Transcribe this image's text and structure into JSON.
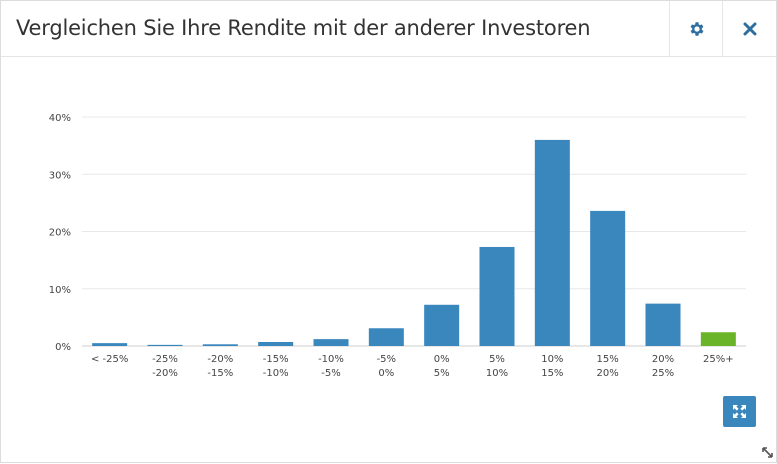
{
  "widget": {
    "title": "Vergleichen Sie Ihre Rendite mit der anderer Investoren",
    "icons": {
      "settings": "gear-icon",
      "close": "close-icon",
      "expand": "expand-icon",
      "resize": "resize-handle-icon"
    }
  },
  "colors": {
    "bar": "#3a87bd",
    "highlight": "#6ab42a",
    "grid": "#e8e8e8",
    "axis_text": "#444444"
  },
  "chart_data": {
    "type": "bar",
    "categories": [
      [
        "< -25%"
      ],
      [
        "-25%",
        "-20%"
      ],
      [
        "-20%",
        "-15%"
      ],
      [
        "-15%",
        "-10%"
      ],
      [
        "-10%",
        "-5%"
      ],
      [
        "-5%",
        "0%"
      ],
      [
        "0%",
        "5%"
      ],
      [
        "5%",
        "10%"
      ],
      [
        "10%",
        "15%"
      ],
      [
        "15%",
        "20%"
      ],
      [
        "20%",
        "25%"
      ],
      [
        "25%+"
      ]
    ],
    "values": [
      0.5,
      0.2,
      0.3,
      0.7,
      1.2,
      3.1,
      7.2,
      17.3,
      36.0,
      23.6,
      7.4,
      2.4
    ],
    "highlight_index": 11,
    "ylim": [
      0,
      40
    ],
    "yticks": [
      0,
      10,
      20,
      30,
      40
    ],
    "ytick_labels": [
      "0%",
      "10%",
      "20%",
      "30%",
      "40%"
    ],
    "grid": true,
    "legend": "none"
  }
}
